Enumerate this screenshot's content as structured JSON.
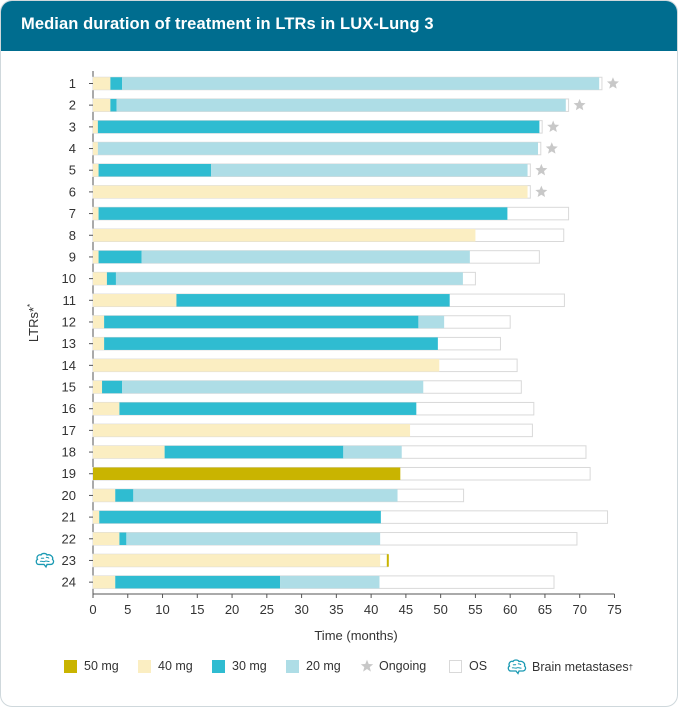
{
  "header": {
    "title": "Median duration of treatment in LTRs in LUX-Lung 3"
  },
  "colors": {
    "d50": "#c9b400",
    "d40": "#fbeec2",
    "d30": "#2fbcd1",
    "d20": "#aedde6",
    "os": "#ffffff",
    "os_border": "#d9d9d9",
    "ongoing": "#c8c8c8",
    "brain": "#1b9ab3",
    "header_bg": "#006d8f"
  },
  "chart_data": {
    "type": "bar",
    "orientation": "horizontal-stacked",
    "title": "Median duration of treatment in LTRs in LUX-Lung 3",
    "xlabel": "Time (months)",
    "ylabel": "LTRs*",
    "xlim": [
      0,
      75
    ],
    "xticks": [
      "0",
      "5",
      "10",
      "15",
      "20",
      "25",
      "30",
      "35",
      "40",
      "45",
      "50",
      "55",
      "60",
      "65",
      "70",
      "75"
    ],
    "patients": [
      {
        "label": "1",
        "segments": [
          {
            "dose": "40",
            "start": 0,
            "end": 2.5
          },
          {
            "dose": "30",
            "start": 2.5,
            "end": 4.2
          },
          {
            "dose": "20",
            "start": 4.2,
            "end": 72.8
          }
        ],
        "os": 73.2,
        "ongoing": true,
        "brain_metastases": false
      },
      {
        "label": "2",
        "segments": [
          {
            "dose": "40",
            "start": 0,
            "end": 2.5
          },
          {
            "dose": "30",
            "start": 2.5,
            "end": 3.4
          },
          {
            "dose": "20",
            "start": 3.4,
            "end": 68.0
          }
        ],
        "os": 68.4,
        "ongoing": true,
        "brain_metastases": false
      },
      {
        "label": "3",
        "segments": [
          {
            "dose": "40",
            "start": 0,
            "end": 0.7
          },
          {
            "dose": "30",
            "start": 0.7,
            "end": 64.2
          }
        ],
        "os": 64.6,
        "ongoing": true,
        "brain_metastases": false
      },
      {
        "label": "4",
        "segments": [
          {
            "dose": "40",
            "start": 0,
            "end": 0.7
          },
          {
            "dose": "20",
            "start": 0.7,
            "end": 64.0
          }
        ],
        "os": 64.4,
        "ongoing": true,
        "brain_metastases": false
      },
      {
        "label": "5",
        "segments": [
          {
            "dose": "40",
            "start": 0,
            "end": 0.8
          },
          {
            "dose": "30",
            "start": 0.8,
            "end": 17.0
          },
          {
            "dose": "20",
            "start": 17.0,
            "end": 62.5
          }
        ],
        "os": 62.9,
        "ongoing": true,
        "brain_metastases": false
      },
      {
        "label": "6",
        "segments": [
          {
            "dose": "40",
            "start": 0,
            "end": 62.5
          }
        ],
        "os": 62.9,
        "ongoing": true,
        "brain_metastases": false
      },
      {
        "label": "7",
        "segments": [
          {
            "dose": "40",
            "start": 0,
            "end": 0.8
          },
          {
            "dose": "30",
            "start": 0.8,
            "end": 59.6
          }
        ],
        "os": 68.4,
        "ongoing": false,
        "brain_metastases": false
      },
      {
        "label": "8",
        "segments": [
          {
            "dose": "40",
            "start": 0,
            "end": 55.0
          }
        ],
        "os": 67.7,
        "ongoing": false,
        "brain_metastases": false
      },
      {
        "label": "9",
        "segments": [
          {
            "dose": "40",
            "start": 0,
            "end": 0.8
          },
          {
            "dose": "30",
            "start": 0.8,
            "end": 7.0
          },
          {
            "dose": "20",
            "start": 7.0,
            "end": 54.2
          }
        ],
        "os": 64.2,
        "ongoing": false,
        "brain_metastases": false
      },
      {
        "label": "10",
        "segments": [
          {
            "dose": "40",
            "start": 0,
            "end": 2.0
          },
          {
            "dose": "30",
            "start": 2.0,
            "end": 3.3
          },
          {
            "dose": "20",
            "start": 3.3,
            "end": 53.2
          }
        ],
        "os": 55.0,
        "ongoing": false,
        "brain_metastases": false
      },
      {
        "label": "11",
        "segments": [
          {
            "dose": "40",
            "start": 0,
            "end": 12.0
          },
          {
            "dose": "30",
            "start": 12.0,
            "end": 51.3
          }
        ],
        "os": 67.8,
        "ongoing": false,
        "brain_metastases": false
      },
      {
        "label": "12",
        "segments": [
          {
            "dose": "40",
            "start": 0,
            "end": 1.6
          },
          {
            "dose": "30",
            "start": 1.6,
            "end": 46.8
          },
          {
            "dose": "20",
            "start": 46.8,
            "end": 50.5
          }
        ],
        "os": 60.0,
        "ongoing": false,
        "brain_metastases": false
      },
      {
        "label": "13",
        "segments": [
          {
            "dose": "40",
            "start": 0,
            "end": 1.6
          },
          {
            "dose": "30",
            "start": 1.6,
            "end": 49.6
          }
        ],
        "os": 58.6,
        "ongoing": false,
        "brain_metastases": false
      },
      {
        "label": "14",
        "segments": [
          {
            "dose": "40",
            "start": 0,
            "end": 49.8
          }
        ],
        "os": 61.0,
        "ongoing": false,
        "brain_metastases": false
      },
      {
        "label": "15",
        "segments": [
          {
            "dose": "40",
            "start": 0,
            "end": 1.3
          },
          {
            "dose": "30",
            "start": 1.3,
            "end": 4.2
          },
          {
            "dose": "20",
            "start": 4.2,
            "end": 47.5
          }
        ],
        "os": 61.6,
        "ongoing": false,
        "brain_metastases": false
      },
      {
        "label": "16",
        "segments": [
          {
            "dose": "40",
            "start": 0,
            "end": 3.8
          },
          {
            "dose": "30",
            "start": 3.8,
            "end": 46.5
          }
        ],
        "os": 63.4,
        "ongoing": false,
        "brain_metastases": false
      },
      {
        "label": "17",
        "segments": [
          {
            "dose": "40",
            "start": 0,
            "end": 45.6
          }
        ],
        "os": 63.2,
        "ongoing": false,
        "brain_metastases": false
      },
      {
        "label": "18",
        "segments": [
          {
            "dose": "40",
            "start": 0,
            "end": 10.3
          },
          {
            "dose": "30",
            "start": 10.3,
            "end": 36.0
          },
          {
            "dose": "20",
            "start": 36.0,
            "end": 44.4
          }
        ],
        "os": 70.9,
        "ongoing": false,
        "brain_metastases": false
      },
      {
        "label": "19",
        "segments": [
          {
            "dose": "50",
            "start": 0,
            "end": 44.2
          }
        ],
        "os": 71.5,
        "ongoing": false,
        "brain_metastases": false
      },
      {
        "label": "20",
        "segments": [
          {
            "dose": "40",
            "start": 0,
            "end": 3.2
          },
          {
            "dose": "30",
            "start": 3.2,
            "end": 5.8
          },
          {
            "dose": "20",
            "start": 5.8,
            "end": 43.8
          }
        ],
        "os": 53.3,
        "ongoing": false,
        "brain_metastases": false
      },
      {
        "label": "21",
        "segments": [
          {
            "dose": "40",
            "start": 0,
            "end": 0.9
          },
          {
            "dose": "30",
            "start": 0.9,
            "end": 41.4
          }
        ],
        "os": 74.0,
        "ongoing": false,
        "brain_metastases": false
      },
      {
        "label": "22",
        "segments": [
          {
            "dose": "40",
            "start": 0,
            "end": 3.8
          },
          {
            "dose": "30",
            "start": 3.8,
            "end": 4.8
          },
          {
            "dose": "20",
            "start": 4.8,
            "end": 41.3
          }
        ],
        "os": 69.6,
        "ongoing": false,
        "brain_metastases": false
      },
      {
        "label": "23",
        "segments": [
          {
            "dose": "40",
            "start": 0,
            "end": 41.3
          }
        ],
        "os": 42.4,
        "ongoing": false,
        "brain_metastases": true
      },
      {
        "label": "24",
        "segments": [
          {
            "dose": "40",
            "start": 0,
            "end": 3.2
          },
          {
            "dose": "30",
            "start": 3.2,
            "end": 26.9
          },
          {
            "dose": "20",
            "start": 26.9,
            "end": 41.2
          }
        ],
        "os": 66.3,
        "ongoing": false,
        "brain_metastases": false
      }
    ]
  },
  "legend": {
    "items": [
      {
        "key": "d50",
        "label": "50 mg"
      },
      {
        "key": "d40",
        "label": "40 mg"
      },
      {
        "key": "d30",
        "label": "30 mg"
      },
      {
        "key": "d20",
        "label": "20 mg"
      },
      {
        "key": "ongoing",
        "label": "Ongoing"
      },
      {
        "key": "os",
        "label": "OS"
      }
    ],
    "brain_label": "Brain metastases",
    "brain_sup": "†"
  },
  "ylabel_sup": "*"
}
